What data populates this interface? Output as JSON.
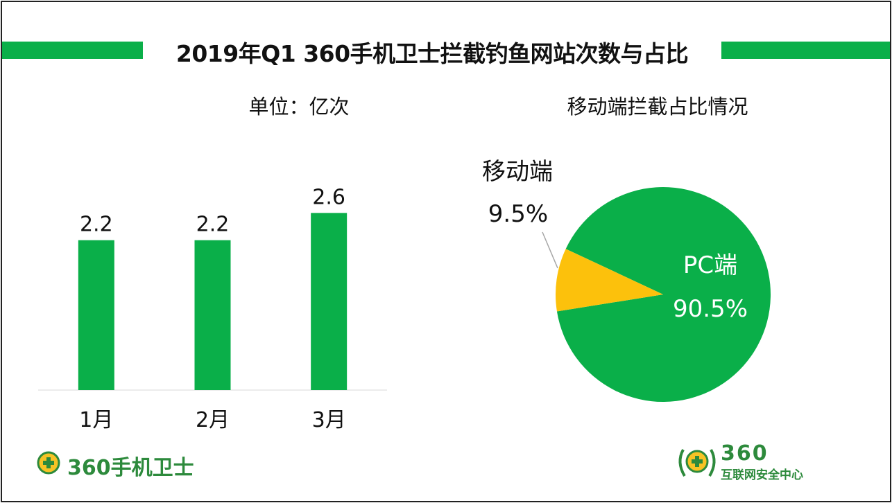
{
  "title": "2019年Q1 360手机卫士拦截钓鱼网站次数与占比",
  "bar_unit_label": "单位：亿次",
  "pie_title": "移动端拦截占比情况",
  "chart_data": [
    {
      "type": "bar",
      "categories": [
        "1月",
        "2月",
        "3月"
      ],
      "values": [
        2.2,
        2.2,
        2.6
      ],
      "value_labels": [
        "2.2",
        "2.2",
        "2.6"
      ],
      "color": "#0aaf49"
    },
    {
      "type": "pie",
      "labels": [
        "PC端",
        "移动端"
      ],
      "values": [
        90.5,
        9.5
      ],
      "value_labels": [
        "90.5%",
        "9.5%"
      ],
      "colors": [
        "#0aaf49",
        "#fcc10c"
      ]
    }
  ],
  "logos": {
    "left": "360手机卫士",
    "right_top": "360",
    "right_bottom": "互联网安全中心"
  },
  "colors": {
    "accent_green": "#0aaf49",
    "pie_yellow": "#fcc10c",
    "logo_green": "#2d8a3c"
  }
}
